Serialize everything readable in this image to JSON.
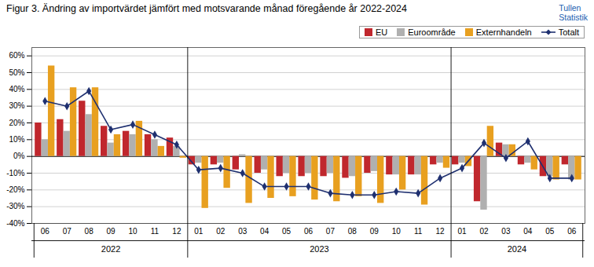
{
  "chart_data": {
    "type": "bar",
    "title": "Figur 3. Ändring av importvärdet jämfört med motsvarande månad föregående år 2022-2024",
    "categories": [
      "06",
      "07",
      "08",
      "09",
      "10",
      "11",
      "12",
      "01",
      "02",
      "03",
      "04",
      "05",
      "06",
      "07",
      "08",
      "09",
      "10",
      "11",
      "12",
      "01",
      "02",
      "03",
      "04",
      "05",
      "06"
    ],
    "series": [
      {
        "name": "EU",
        "type": "bar",
        "color": "#c0272d",
        "values": [
          20,
          22,
          33,
          18,
          15,
          13,
          11,
          -5,
          -5,
          -8,
          -10,
          -12,
          -12,
          -12,
          -13,
          -10,
          -11,
          -11,
          -5,
          -5,
          -27,
          8,
          -5,
          -12,
          -5
        ]
      },
      {
        "name": "Euroområde",
        "type": "bar",
        "color": "#b0b0b0",
        "values": [
          10,
          15,
          25,
          8,
          13,
          10,
          6,
          -4,
          -4,
          1,
          -8,
          -10,
          -10,
          -10,
          -12,
          -9,
          -11,
          -11,
          -4,
          -4,
          -32,
          7,
          -4,
          -12,
          -14
        ]
      },
      {
        "name": "Externhandeln",
        "type": "bar",
        "color": "#e8a020",
        "values": [
          54,
          41,
          41,
          13,
          21,
          6,
          -1,
          -31,
          -19,
          -28,
          -25,
          -24,
          -26,
          -27,
          -24,
          -28,
          -20,
          -29,
          -7,
          -6,
          18,
          7,
          -8,
          -14,
          -14
        ]
      },
      {
        "name": "Totalt",
        "type": "line",
        "marker": "diamond",
        "color": "#1f3070",
        "values": [
          33,
          30,
          39,
          16,
          19,
          13,
          7,
          -8,
          -7,
          -10,
          -18,
          -18,
          -18,
          -22,
          -23,
          -23,
          -21,
          -22,
          -13,
          -7,
          8,
          -1,
          9,
          -13,
          -13
        ]
      }
    ],
    "groups": [
      {
        "label": "2022",
        "start": 0,
        "end": 6
      },
      {
        "label": "2023",
        "start": 7,
        "end": 18
      },
      {
        "label": "2024",
        "start": 19,
        "end": 24
      }
    ],
    "annotations": [
      {
        "text": "Tullen\nStatistik",
        "color": "#2060b0"
      }
    ],
    "ylim": [
      -40,
      65
    ],
    "yticks": [
      {
        "value": -40,
        "label": "-40%"
      },
      {
        "value": -30,
        "label": "-30%"
      },
      {
        "value": -20,
        "label": "-20%"
      },
      {
        "value": -10,
        "label": "-10%"
      },
      {
        "value": 0,
        "label": "0%"
      },
      {
        "value": 10,
        "label": "10%"
      },
      {
        "value": 20,
        "label": "20%"
      },
      {
        "value": 30,
        "label": "30%"
      },
      {
        "value": 40,
        "label": "40%"
      },
      {
        "value": 50,
        "label": "50%"
      },
      {
        "value": 60,
        "label": "60%"
      }
    ],
    "grid": true,
    "legend": "upper right"
  }
}
